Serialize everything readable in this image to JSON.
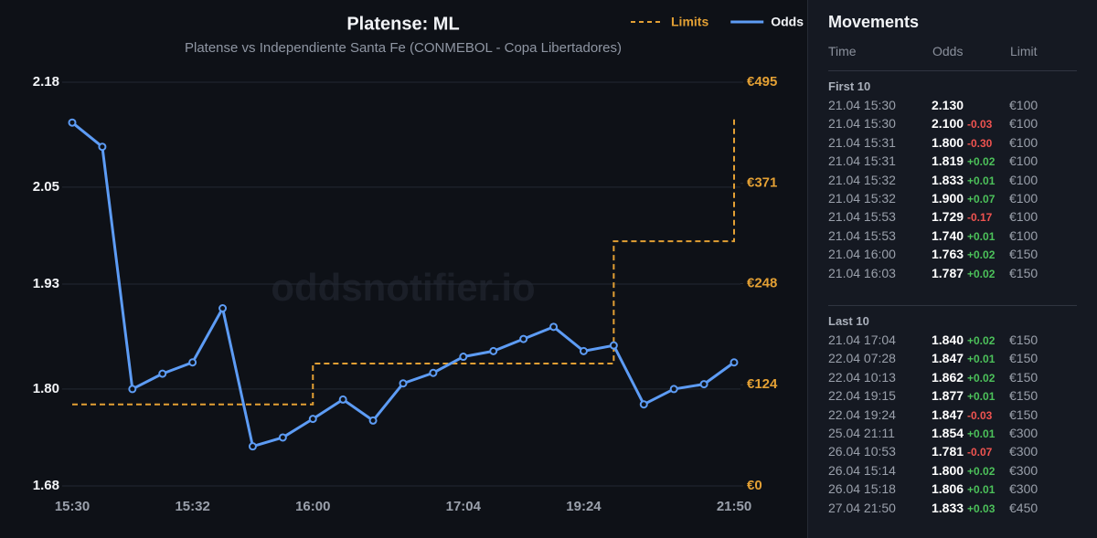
{
  "chart_data": {
    "type": "line",
    "title": "Platense: ML",
    "subtitle": "Platense vs Independiente Santa Fe (CONMEBOL - Copa Libertadores)",
    "watermark": "oddsnotifier.io",
    "categories": [
      "15:30",
      null,
      null,
      null,
      "15:32",
      null,
      null,
      null,
      "16:00",
      null,
      null,
      null,
      null,
      "17:04",
      null,
      null,
      null,
      "19:24",
      null,
      null,
      null,
      null,
      "21:50"
    ],
    "series": [
      {
        "name": "Limits",
        "color": "#e3a034",
        "axis": "y2",
        "style": "step-dashed",
        "values": [
          100,
          100,
          100,
          100,
          100,
          100,
          100,
          100,
          150,
          150,
          150,
          150,
          150,
          150,
          150,
          150,
          150,
          150,
          300,
          300,
          300,
          300,
          450
        ]
      },
      {
        "name": "Odds",
        "color": "#5d9cf5",
        "values": [
          2.13,
          2.1,
          1.8,
          1.819,
          1.833,
          1.9,
          1.729,
          1.74,
          1.763,
          1.787,
          1.761,
          1.807,
          1.82,
          1.84,
          1.847,
          1.862,
          1.877,
          1.847,
          1.854,
          1.781,
          1.8,
          1.806,
          1.833
        ]
      }
    ],
    "ylim": [
      1.68,
      2.18
    ],
    "yticks": [
      1.68,
      {
        "value": 1.8,
        "label": "1.80"
      },
      1.93,
      2.05,
      2.18
    ],
    "y2lim": [
      0,
      495
    ],
    "y2ticks": [
      {
        "value": 0,
        "label": "€0"
      },
      {
        "value": 124,
        "label": "€124"
      },
      {
        "value": 248,
        "label": "€248"
      },
      {
        "value": 371,
        "label": "€371"
      },
      {
        "value": 495,
        "label": "€495"
      }
    ],
    "grid": true
  },
  "panel": {
    "title": "Movements",
    "headers": [
      "Time",
      "Odds",
      "Limit"
    ],
    "groups": [
      {
        "title": "First 10",
        "rows": [
          {
            "time": "21.04 15:30",
            "odds": "2.130",
            "limit": "€100"
          },
          {
            "time": "21.04 15:30",
            "odds": "2.100",
            "change": "-0.03",
            "limit": "€100"
          },
          {
            "time": "21.04 15:31",
            "odds": "1.800",
            "change": "-0.30",
            "limit": "€100"
          },
          {
            "time": "21.04 15:31",
            "odds": "1.819",
            "change": "+0.02",
            "limit": "€100"
          },
          {
            "time": "21.04 15:32",
            "odds": "1.833",
            "change": "+0.01",
            "limit": "€100"
          },
          {
            "time": "21.04 15:32",
            "odds": "1.900",
            "change": "+0.07",
            "limit": "€100"
          },
          {
            "time": "21.04 15:53",
            "odds": "1.729",
            "change": "-0.17",
            "limit": "€100"
          },
          {
            "time": "21.04 15:53",
            "odds": "1.740",
            "change": "+0.01",
            "limit": "€100"
          },
          {
            "time": "21.04 16:00",
            "odds": "1.763",
            "change": "+0.02",
            "limit": "€150"
          },
          {
            "time": "21.04 16:03",
            "odds": "1.787",
            "change": "+0.02",
            "limit": "€150"
          }
        ]
      },
      {
        "title": "Last 10",
        "rows": [
          {
            "time": "21.04 17:04",
            "odds": "1.840",
            "change": "+0.02",
            "limit": "€150"
          },
          {
            "time": "22.04 07:28",
            "odds": "1.847",
            "change": "+0.01",
            "limit": "€150"
          },
          {
            "time": "22.04 10:13",
            "odds": "1.862",
            "change": "+0.02",
            "limit": "€150"
          },
          {
            "time": "22.04 19:15",
            "odds": "1.877",
            "change": "+0.01",
            "limit": "€150"
          },
          {
            "time": "22.04 19:24",
            "odds": "1.847",
            "change": "-0.03",
            "limit": "€150"
          },
          {
            "time": "25.04 21:11",
            "odds": "1.854",
            "change": "+0.01",
            "limit": "€300"
          },
          {
            "time": "26.04 10:53",
            "odds": "1.781",
            "change": "-0.07",
            "limit": "€300"
          },
          {
            "time": "26.04 15:14",
            "odds": "1.800",
            "change": "+0.02",
            "limit": "€300"
          },
          {
            "time": "26.04 15:18",
            "odds": "1.806",
            "change": "+0.01",
            "limit": "€300"
          },
          {
            "time": "27.04 21:50",
            "odds": "1.833",
            "change": "+0.03",
            "limit": "€450"
          }
        ]
      }
    ]
  }
}
